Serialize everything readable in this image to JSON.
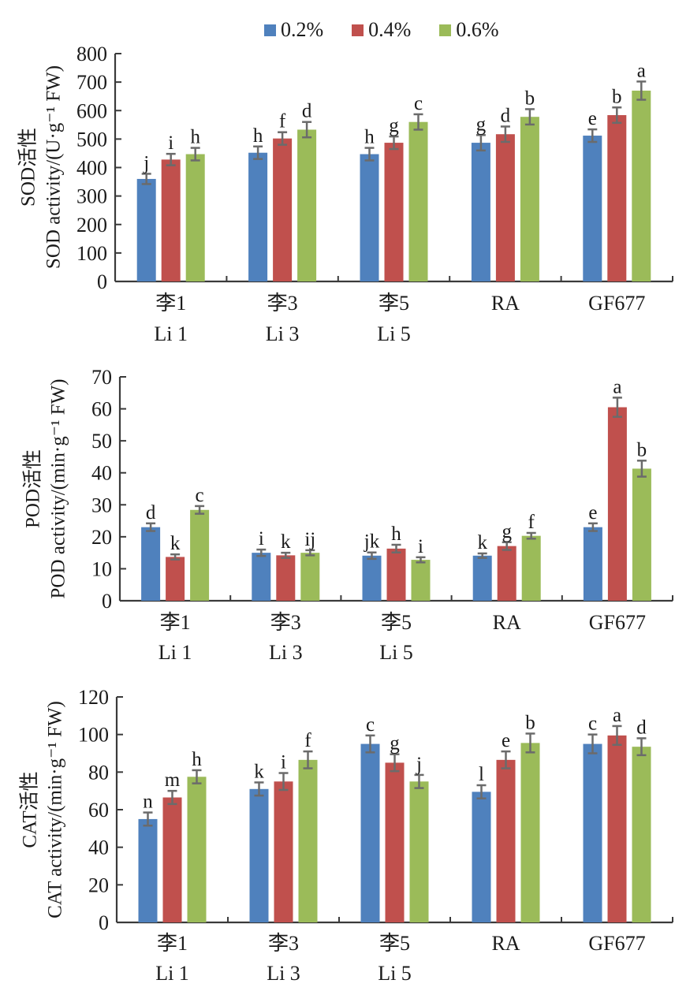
{
  "legend": {
    "entries": [
      {
        "label": "0.2%",
        "color": "#4f81bd"
      },
      {
        "label": "0.4%",
        "color": "#c0504d"
      },
      {
        "label": "0.6%",
        "color": "#9bbb59"
      }
    ]
  },
  "chart_data": [
    {
      "type": "bar",
      "name": "SOD",
      "ylabel_cn": "SOD活性",
      "ylabel_en": "SOD activity/(U·g⁻¹ FW)",
      "ylim": [
        0,
        800
      ],
      "yticks": [
        0,
        100,
        200,
        300,
        400,
        500,
        600,
        700,
        800
      ],
      "categories": [
        {
          "cn": "李1",
          "en": "Li 1"
        },
        {
          "cn": "李3",
          "en": "Li 3"
        },
        {
          "cn": "李5",
          "en": "Li 5"
        },
        {
          "cn": "RA",
          "en": ""
        },
        {
          "cn": "GF677",
          "en": ""
        }
      ],
      "series": [
        {
          "name": "0.2%",
          "values": [
            360,
            452,
            447,
            487,
            512
          ],
          "errors": [
            18,
            22,
            22,
            27,
            22
          ],
          "letters": [
            "j",
            "h",
            "h",
            "g",
            "e"
          ]
        },
        {
          "name": "0.4%",
          "values": [
            428,
            502,
            487,
            517,
            584
          ],
          "errors": [
            20,
            22,
            22,
            27,
            27
          ],
          "letters": [
            "i",
            "f",
            "g",
            "d",
            "b"
          ]
        },
        {
          "name": "0.6%",
          "values": [
            447,
            533,
            560,
            578,
            670
          ],
          "errors": [
            22,
            27,
            27,
            27,
            32
          ],
          "letters": [
            "h",
            "d",
            "c",
            "b",
            "a"
          ]
        }
      ]
    },
    {
      "type": "bar",
      "name": "POD",
      "ylabel_cn": "POD活性",
      "ylabel_en": "POD activity/(min·g⁻¹ FW)",
      "ylim": [
        0,
        70
      ],
      "yticks": [
        0,
        10,
        20,
        30,
        40,
        50,
        60,
        70
      ],
      "categories": [
        {
          "cn": "李1",
          "en": "Li 1"
        },
        {
          "cn": "李3",
          "en": "Li 3"
        },
        {
          "cn": "李5",
          "en": "Li 5"
        },
        {
          "cn": "RA",
          "en": ""
        },
        {
          "cn": "GF677",
          "en": ""
        }
      ],
      "series": [
        {
          "name": "0.2%",
          "values": [
            23.0,
            15.0,
            14.1,
            14.1,
            23.0
          ],
          "errors": [
            1.2,
            1.0,
            1.0,
            0.7,
            1.2
          ],
          "letters": [
            "d",
            "i",
            "jk",
            "k",
            "e"
          ]
        },
        {
          "name": "0.4%",
          "values": [
            13.7,
            14.2,
            16.3,
            17.1,
            60.5
          ],
          "errors": [
            0.8,
            0.8,
            1.2,
            1.2,
            3.0
          ],
          "letters": [
            "k",
            "k",
            "h",
            "g",
            "a"
          ]
        },
        {
          "name": "0.6%",
          "values": [
            28.4,
            15.0,
            12.8,
            20.3,
            41.3
          ],
          "errors": [
            1.2,
            0.8,
            0.8,
            0.9,
            2.5
          ],
          "letters": [
            "c",
            "ij",
            "i",
            "f",
            "b"
          ]
        }
      ]
    },
    {
      "type": "bar",
      "name": "CAT",
      "ylabel_cn": "CAT活性",
      "ylabel_en": "CAT activity/(min·g⁻¹ FW)",
      "ylim": [
        0,
        120
      ],
      "yticks": [
        0,
        20,
        40,
        60,
        80,
        100,
        120
      ],
      "categories": [
        {
          "cn": "李1",
          "en": "Li 1"
        },
        {
          "cn": "李3",
          "en": "Li 3"
        },
        {
          "cn": "李5",
          "en": "Li 5"
        },
        {
          "cn": "RA",
          "en": ""
        },
        {
          "cn": "GF677",
          "en": ""
        }
      ],
      "series": [
        {
          "name": "0.2%",
          "values": [
            55,
            71,
            95,
            69.5,
            95
          ],
          "errors": [
            3.5,
            3.5,
            4.5,
            3.5,
            5
          ],
          "letters": [
            "n",
            "k",
            "c",
            "l",
            "c"
          ]
        },
        {
          "name": "0.4%",
          "values": [
            66.5,
            75,
            85,
            86.5,
            99.5
          ],
          "errors": [
            3.5,
            4.5,
            4.5,
            4.5,
            5
          ],
          "letters": [
            "m",
            "i",
            "g",
            "e",
            "a"
          ]
        },
        {
          "name": "0.6%",
          "values": [
            77.5,
            86.5,
            75,
            95.5,
            93.5
          ],
          "errors": [
            3.5,
            4.5,
            3.5,
            5,
            4.5
          ],
          "letters": [
            "h",
            "f",
            "j",
            "b",
            "d"
          ]
        }
      ]
    }
  ]
}
